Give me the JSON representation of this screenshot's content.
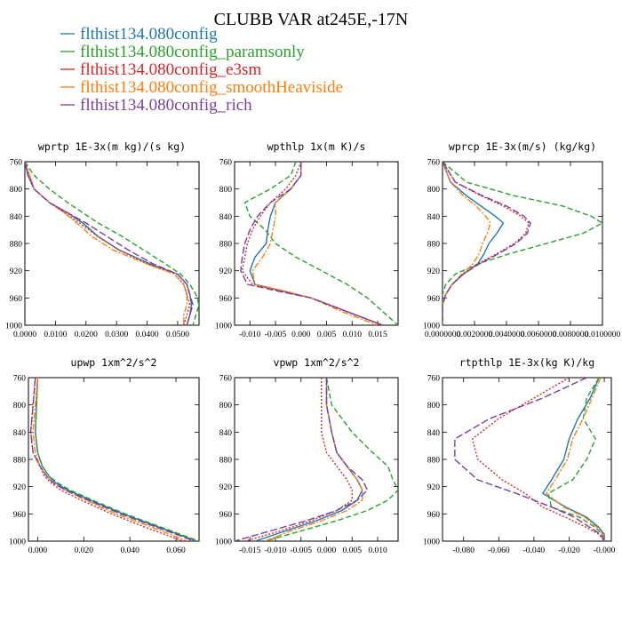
{
  "figure": {
    "title": "CLUBB VAR at245E,-17N",
    "legend": [
      {
        "label": "flthist134.080config",
        "color": "#1f77b4",
        "dash": ""
      },
      {
        "label": "flthist134.080config_paramsonly",
        "color": "#2ca02c",
        "dash": "6,3"
      },
      {
        "label": "flthist134.080config_e3sm",
        "color": "#d62728",
        "dash": "2,2"
      },
      {
        "label": "flthist134.080config_smoothHeaviside",
        "color": "#ff7f0e",
        "dash": "7,2,2,2"
      },
      {
        "label": "flthist134.080config_rich",
        "color": "#7b3f9e",
        "dash": "8,3"
      }
    ]
  },
  "chart_data": [
    {
      "type": "line",
      "title": "wprtp  1E-3x(m kg)/(s kg)",
      "xlim": [
        0,
        0.057
      ],
      "ylim": [
        760,
        1000
      ],
      "y_inverted": true,
      "xticks": [
        0,
        0.01,
        0.02,
        0.03,
        0.04,
        0.05
      ],
      "xticklabels": [
        "0.0000",
        "0.0100",
        "0.0200",
        "0.0300",
        "0.0400",
        "0.0500"
      ],
      "yticks": [
        760,
        800,
        840,
        880,
        920,
        960,
        1000
      ],
      "yticklabels": [
        "760",
        "800",
        "840",
        "880",
        "920",
        "960",
        "1000"
      ],
      "levels": [
        760,
        780,
        800,
        820,
        835,
        850,
        870,
        890,
        910,
        925,
        940,
        955,
        970,
        985,
        1000
      ],
      "series": [
        {
          "values": [
            0.0,
            0.001,
            0.003,
            0.008,
            0.014,
            0.019,
            0.024,
            0.031,
            0.041,
            0.05,
            0.053,
            0.054,
            0.0545,
            0.054,
            0.053
          ]
        },
        {
          "values": [
            0.0,
            0.003,
            0.008,
            0.014,
            0.019,
            0.024,
            0.032,
            0.039,
            0.046,
            0.051,
            0.054,
            0.056,
            0.057,
            0.056,
            0.055
          ]
        },
        {
          "values": [
            0.0,
            0.0015,
            0.003,
            0.008,
            0.013,
            0.018,
            0.024,
            0.031,
            0.04,
            0.049,
            0.052,
            0.053,
            0.054,
            0.053,
            0.052
          ]
        },
        {
          "values": [
            0.0,
            0.0015,
            0.003,
            0.008,
            0.013,
            0.017,
            0.022,
            0.029,
            0.04,
            0.049,
            0.052,
            0.053,
            0.053,
            0.052,
            0.052
          ]
        },
        {
          "values": [
            0.0,
            0.001,
            0.003,
            0.008,
            0.014,
            0.02,
            0.027,
            0.034,
            0.042,
            0.05,
            0.053,
            0.054,
            0.055,
            0.054,
            0.053
          ]
        }
      ]
    },
    {
      "type": "line",
      "title": "wpthlp  1x(m K)/s",
      "xlim": [
        -0.013,
        0.019
      ],
      "ylim": [
        760,
        1000
      ],
      "y_inverted": true,
      "xticks": [
        -0.01,
        -0.005,
        0,
        0.005,
        0.01,
        0.015
      ],
      "xticklabels": [
        "-0.010",
        "-0.005",
        "0.000",
        "0.005",
        "0.010",
        "0.015"
      ],
      "yticks": [
        760,
        800,
        840,
        880,
        920,
        960,
        1000
      ],
      "yticklabels": [
        "760",
        "800",
        "840",
        "880",
        "920",
        "960",
        "1000"
      ],
      "levels": [
        760,
        780,
        800,
        820,
        840,
        860,
        880,
        900,
        920,
        940,
        950,
        960,
        980,
        1000
      ],
      "series": [
        {
          "values": [
            0.0,
            0.0,
            -0.002,
            -0.005,
            -0.006,
            -0.0065,
            -0.0068,
            -0.009,
            -0.01,
            -0.009,
            -0.0035,
            0.002,
            0.009,
            0.016
          ]
        },
        {
          "values": [
            -0.001,
            -0.002,
            -0.006,
            -0.011,
            -0.01,
            -0.007,
            -0.005,
            -0.001,
            0.004,
            0.009,
            0.011,
            0.013,
            0.016,
            0.019
          ]
        },
        {
          "values": [
            0.0,
            -0.001,
            -0.003,
            -0.006,
            -0.008,
            -0.0095,
            -0.0105,
            -0.011,
            -0.0115,
            -0.0095,
            -0.004,
            0.002,
            0.009,
            0.016
          ]
        },
        {
          "values": [
            0.0,
            0.0,
            -0.002,
            -0.005,
            -0.005,
            -0.0055,
            -0.006,
            -0.0075,
            -0.0095,
            -0.009,
            -0.003,
            0.002,
            0.008,
            0.015
          ]
        },
        {
          "values": [
            0.0,
            0.0,
            -0.002,
            -0.006,
            -0.0085,
            -0.01,
            -0.011,
            -0.0115,
            -0.0118,
            -0.0105,
            -0.0045,
            0.002,
            0.009,
            0.016
          ]
        }
      ]
    },
    {
      "type": "line",
      "title": "wprcp  1E-3x(m/s) (kg/kg)",
      "xlim": [
        0,
        0.01
      ],
      "ylim": [
        760,
        1000
      ],
      "y_inverted": true,
      "xticks": [
        0,
        0.002,
        0.004,
        0.006,
        0.008,
        0.01
      ],
      "xticklabels": [
        "0.0000000",
        "0.0020000",
        "0.0040000",
        "0.0060000",
        "0.0080000",
        "0.0100000"
      ],
      "yticks": [
        760,
        800,
        840,
        880,
        920,
        960,
        1000
      ],
      "yticklabels": [
        "760",
        "800",
        "840",
        "880",
        "920",
        "960",
        "1000"
      ],
      "levels": [
        760,
        790,
        810,
        825,
        840,
        850,
        865,
        880,
        895,
        910,
        925,
        940,
        955,
        970,
        985,
        1000
      ],
      "series": [
        {
          "values": [
            0.0,
            0.0005,
            0.0015,
            0.0024,
            0.0033,
            0.0038,
            0.0034,
            0.0029,
            0.0026,
            0.0022,
            0.0013,
            0.0006,
            0.0002,
            0.0,
            0.0,
            0.0
          ]
        },
        {
          "values": [
            0.0,
            0.0015,
            0.0045,
            0.0075,
            0.0093,
            0.01,
            0.0088,
            0.0065,
            0.0042,
            0.0022,
            0.0008,
            0.0002,
            0.0,
            0.0,
            0.0,
            0.0
          ]
        },
        {
          "values": [
            0.0,
            0.0008,
            0.0024,
            0.0038,
            0.0049,
            0.0054,
            0.0052,
            0.0045,
            0.0034,
            0.0022,
            0.0013,
            0.0006,
            0.0002,
            0.0,
            0.0,
            0.0
          ]
        },
        {
          "values": [
            0.0,
            0.0005,
            0.0013,
            0.0021,
            0.0027,
            0.003,
            0.0028,
            0.0025,
            0.0023,
            0.0019,
            0.0012,
            0.0006,
            0.0002,
            0.0,
            0.0,
            0.0
          ]
        },
        {
          "values": [
            0.0,
            0.0008,
            0.0025,
            0.004,
            0.0051,
            0.0055,
            0.0053,
            0.0046,
            0.0035,
            0.0023,
            0.0013,
            0.0006,
            0.0002,
            0.0,
            0.0,
            0.0
          ]
        }
      ]
    },
    {
      "type": "line",
      "title": "upwp  1xm^2/s^2",
      "xlim": [
        -0.004,
        0.07
      ],
      "ylim": [
        760,
        1000
      ],
      "y_inverted": true,
      "xticks": [
        0,
        0.02,
        0.04,
        0.06
      ],
      "xticklabels": [
        "0.000",
        "0.020",
        "0.040",
        "0.060"
      ],
      "yticks": [
        760,
        800,
        840,
        880,
        920,
        960,
        1000
      ],
      "yticklabels": [
        "760",
        "800",
        "840",
        "880",
        "920",
        "960",
        "1000"
      ],
      "levels": [
        760,
        800,
        840,
        870,
        890,
        905,
        915,
        925,
        940,
        960,
        980,
        1000
      ],
      "series": [
        {
          "values": [
            0.0,
            -0.0005,
            -0.001,
            0.0,
            0.002,
            0.005,
            0.008,
            0.013,
            0.023,
            0.037,
            0.053,
            0.069
          ]
        },
        {
          "values": [
            0.0,
            -0.0005,
            -0.001,
            0.0,
            0.002,
            0.005,
            0.009,
            0.014,
            0.024,
            0.038,
            0.054,
            0.07
          ]
        },
        {
          "values": [
            -0.001,
            -0.002,
            -0.003,
            -0.002,
            0.001,
            0.003,
            0.006,
            0.01,
            0.019,
            0.032,
            0.047,
            0.063
          ]
        },
        {
          "values": [
            0.0,
            -0.001,
            -0.002,
            -0.001,
            0.001,
            0.004,
            0.007,
            0.012,
            0.021,
            0.034,
            0.05,
            0.065
          ]
        },
        {
          "values": [
            -0.001,
            -0.002,
            -0.003,
            -0.002,
            0.001,
            0.004,
            0.007,
            0.012,
            0.022,
            0.036,
            0.052,
            0.068
          ]
        }
      ]
    },
    {
      "type": "line",
      "title": "vpwp  1xm^2/s^2",
      "xlim": [
        -0.018,
        0.014
      ],
      "ylim": [
        760,
        1000
      ],
      "y_inverted": true,
      "xticks": [
        -0.015,
        -0.01,
        -0.005,
        0,
        0.005,
        0.01
      ],
      "xticklabels": [
        "-0.015",
        "-0.010",
        "-0.005",
        "0.000",
        "0.005",
        "0.010"
      ],
      "yticks": [
        760,
        800,
        840,
        880,
        920,
        960,
        1000
      ],
      "yticklabels": [
        "760",
        "800",
        "840",
        "880",
        "920",
        "960",
        "1000"
      ],
      "levels": [
        760,
        800,
        840,
        870,
        890,
        910,
        925,
        940,
        955,
        970,
        985,
        1000
      ],
      "series": [
        {
          "values": [
            0.0,
            0.0,
            0.001,
            0.002,
            0.004,
            0.006,
            0.007,
            0.006,
            0.003,
            -0.002,
            -0.008,
            -0.014
          ]
        },
        {
          "values": [
            0.0,
            0.001,
            0.005,
            0.009,
            0.012,
            0.013,
            0.014,
            0.012,
            0.008,
            0.002,
            -0.005,
            -0.012
          ]
        },
        {
          "values": [
            -0.001,
            -0.001,
            -0.001,
            0.0,
            0.002,
            0.004,
            0.005,
            0.005,
            0.002,
            -0.003,
            -0.009,
            -0.016
          ]
        },
        {
          "values": [
            0.0,
            0.0,
            0.001,
            0.002,
            0.004,
            0.006,
            0.007,
            0.007,
            0.004,
            -0.001,
            -0.007,
            -0.012
          ]
        },
        {
          "values": [
            0.0,
            0.0,
            0.001,
            0.002,
            0.004,
            0.007,
            0.008,
            0.006,
            0.002,
            -0.004,
            -0.011,
            -0.018
          ]
        }
      ]
    },
    {
      "type": "line",
      "title": "rtpthlp  1E-3x(kg K)/kg",
      "xlim": [
        -0.092,
        0.004
      ],
      "ylim": [
        760,
        1000
      ],
      "y_inverted": true,
      "xticks": [
        -0.08,
        -0.06,
        -0.04,
        -0.02,
        0
      ],
      "xticklabels": [
        "-0.080",
        "-0.060",
        "-0.040",
        "-0.020",
        "-0.000"
      ],
      "yticks": [
        760,
        800,
        840,
        880,
        920,
        960,
        1000
      ],
      "yticklabels": [
        "760",
        "800",
        "840",
        "880",
        "920",
        "960",
        "1000"
      ],
      "levels": [
        760,
        790,
        820,
        850,
        880,
        910,
        930,
        950,
        965,
        980,
        990,
        1000
      ],
      "series": [
        {
          "values": [
            -0.003,
            -0.008,
            -0.015,
            -0.02,
            -0.023,
            -0.03,
            -0.035,
            -0.022,
            -0.01,
            -0.003,
            0.0,
            0.0
          ]
        },
        {
          "values": [
            -0.003,
            -0.01,
            -0.012,
            -0.005,
            -0.01,
            -0.018,
            -0.032,
            -0.03,
            -0.014,
            -0.005,
            -0.001,
            0.0
          ]
        },
        {
          "values": [
            -0.02,
            -0.04,
            -0.06,
            -0.075,
            -0.072,
            -0.058,
            -0.045,
            -0.035,
            -0.022,
            -0.01,
            -0.003,
            0.0
          ]
        },
        {
          "values": [
            -0.002,
            -0.007,
            -0.012,
            -0.018,
            -0.021,
            -0.028,
            -0.033,
            -0.023,
            -0.011,
            -0.004,
            -0.001,
            0.0
          ]
        },
        {
          "values": [
            -0.01,
            -0.035,
            -0.065,
            -0.085,
            -0.085,
            -0.072,
            -0.05,
            -0.03,
            -0.017,
            -0.008,
            -0.002,
            0.0
          ]
        }
      ]
    }
  ]
}
